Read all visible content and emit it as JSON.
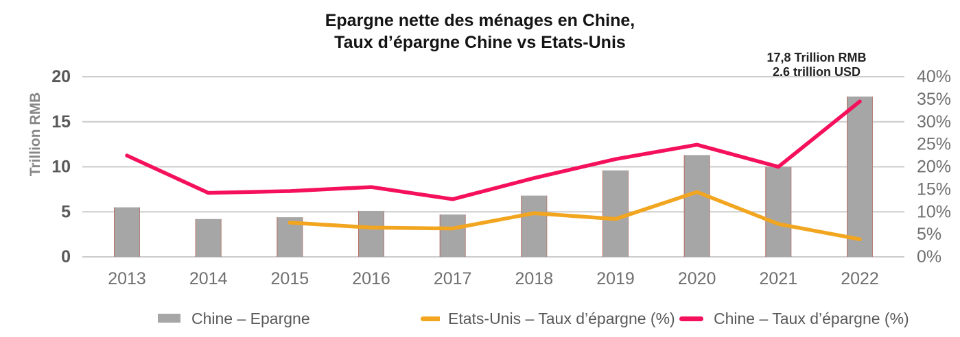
{
  "title": {
    "line1": "Epargne nette des ménages en Chine,",
    "line2": "Taux d’épargne Chine vs Etats-Unis"
  },
  "annotation": {
    "line1": "17,8 Trillion RMB",
    "line2": "2.6 trillion USD"
  },
  "colors": {
    "background": "#ffffff",
    "gridline": "#cccccc",
    "bar": "#a6a6a6",
    "bar_edge_accent": "#c25744",
    "us_line": "#f2a51f",
    "china_line": "#f5105c",
    "title_text": "#141414",
    "left_tick_text": "#595959",
    "right_tick_text": "#6f6f6f",
    "year_text": "#6f6f6f",
    "legend_text": "#595959"
  },
  "chart_data": {
    "type": "combo (bar + line)",
    "title": "Epargne nette des ménages en Chine, Taux d’épargne Chine vs Etats-Unis",
    "categories": [
      "2013",
      "2014",
      "2015",
      "2016",
      "2017",
      "2018",
      "2019",
      "2020",
      "2021",
      "2022"
    ],
    "series": [
      {
        "name": "Chine – Epargne",
        "type": "bar",
        "axis": "left",
        "unit": "Trillion RMB",
        "color": "#a6a6a6",
        "values": [
          5.5,
          4.2,
          4.4,
          5.1,
          4.7,
          6.8,
          9.6,
          11.3,
          10.0,
          17.8
        ]
      },
      {
        "name": "Etats-Unis – Taux d’épargne (%)",
        "type": "line",
        "axis": "right",
        "unit": "%",
        "color": "#f2a51f",
        "values": [
          null,
          null,
          7.6,
          6.5,
          6.3,
          9.7,
          8.4,
          14.4,
          7.3,
          3.9
        ]
      },
      {
        "name": "Chine – Taux d’épargne (%)",
        "type": "line",
        "axis": "right",
        "unit": "%",
        "color": "#f5105c",
        "values": [
          22.5,
          14.2,
          14.6,
          15.5,
          12.8,
          17.5,
          21.7,
          24.9,
          20.0,
          34.5
        ]
      }
    ],
    "left_axis": {
      "label": "Trillion RMB",
      "lim": [
        0,
        20
      ],
      "ticks": [
        20,
        15,
        10,
        5,
        0
      ]
    },
    "right_axis": {
      "label": "%",
      "lim": [
        0,
        40
      ],
      "ticks": [
        40,
        35,
        30,
        25,
        20,
        15,
        10,
        5,
        0
      ],
      "tick_suffix": "%"
    },
    "gridlines_right_pct": [
      0,
      10,
      20,
      30,
      40
    ],
    "grid": "horizontal only",
    "legend_position": "bottom",
    "annotation_target": "2022 bar"
  }
}
